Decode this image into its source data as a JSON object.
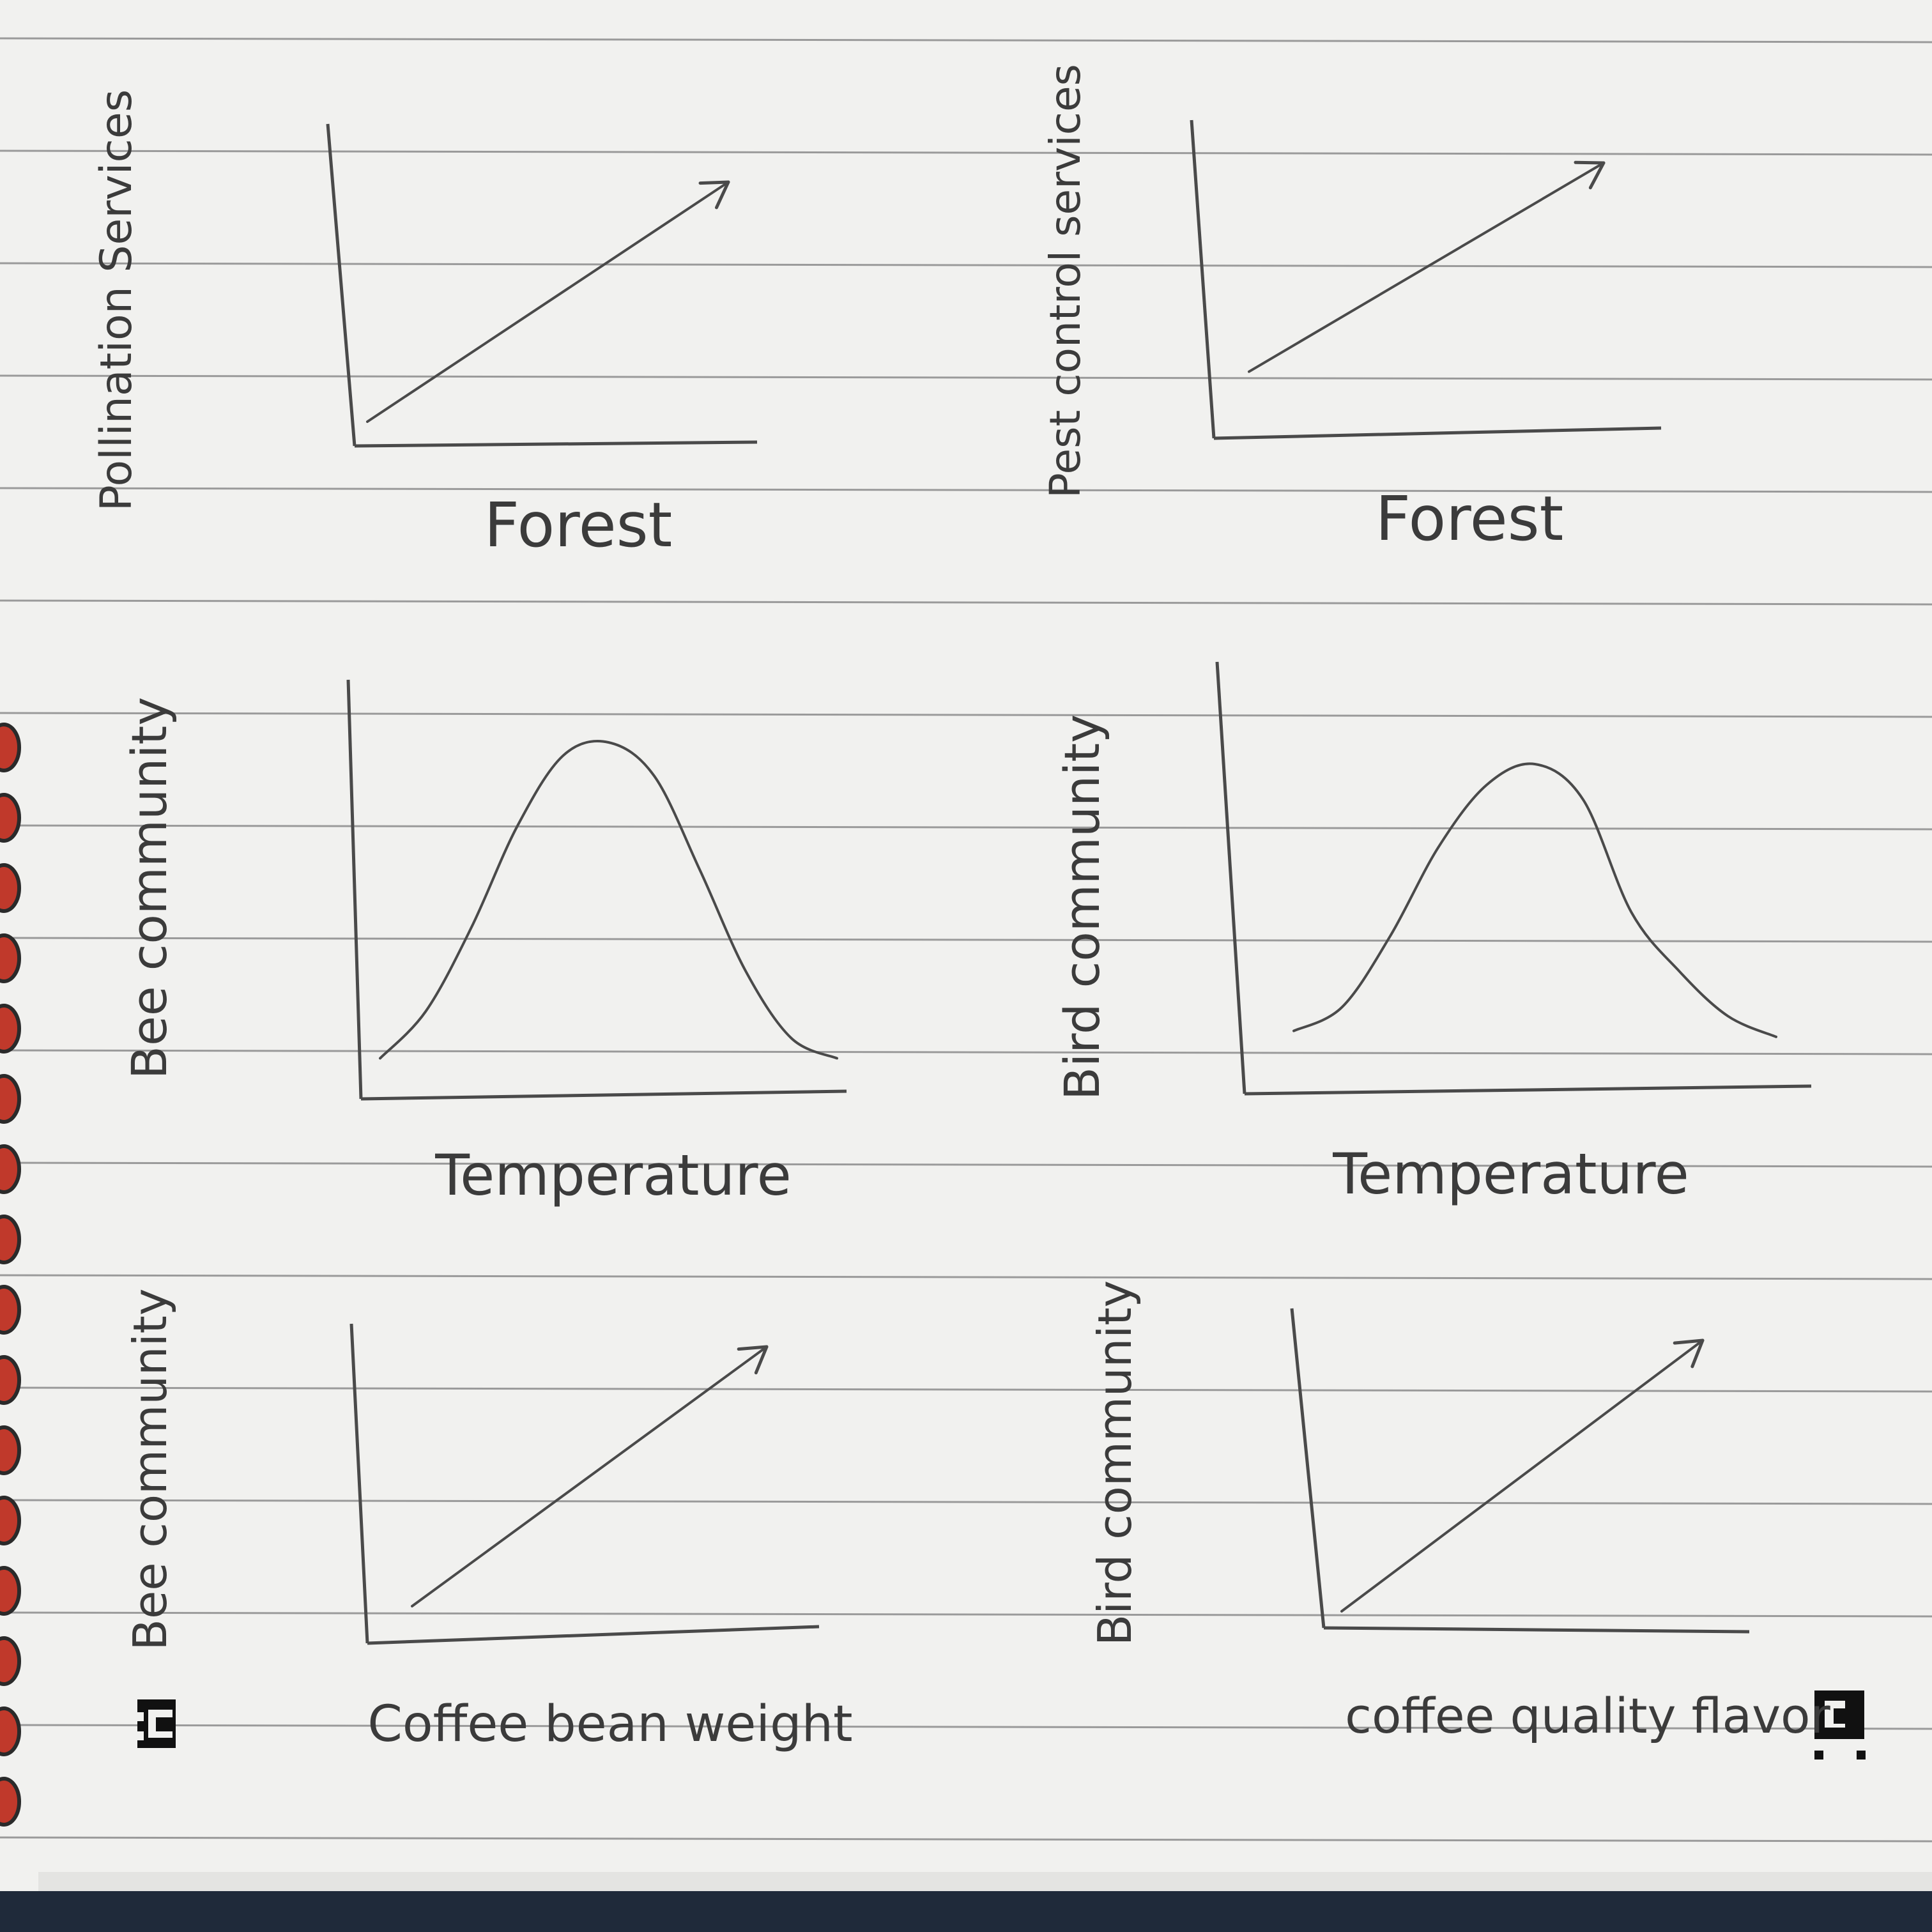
{
  "colors": {
    "paper": "#f1f1ef",
    "rule_line": "#9a9a9a",
    "pencil": "#4a4a4a",
    "spiral": "#c0392b",
    "cover": "#1f2a3a",
    "marker": "#111111"
  },
  "chart_data": [
    {
      "type": "line",
      "ylabel": "Pollination Services",
      "xlabel": "Forest",
      "x": [
        0,
        1
      ],
      "y": [
        0,
        1
      ],
      "end_marker": "arrow"
    },
    {
      "type": "line",
      "ylabel": "Pest control services",
      "xlabel": "Forest",
      "x": [
        0,
        1
      ],
      "y": [
        0.1,
        1
      ],
      "end_marker": "arrow"
    },
    {
      "type": "line",
      "ylabel": "Bee community",
      "xlabel": "Temperature",
      "x": [
        0,
        0.1,
        0.2,
        0.3,
        0.4,
        0.5,
        0.6,
        0.7,
        0.8,
        0.9,
        1.0
      ],
      "y": [
        0.06,
        0.2,
        0.45,
        0.75,
        0.96,
        1.0,
        0.9,
        0.62,
        0.32,
        0.12,
        0.06
      ],
      "end_marker": "none"
    },
    {
      "type": "line",
      "ylabel": "Bird community",
      "xlabel": "Temperature",
      "x": [
        0,
        0.1,
        0.2,
        0.3,
        0.4,
        0.5,
        0.6,
        0.7,
        0.8,
        0.9,
        1.0
      ],
      "y": [
        0.1,
        0.18,
        0.42,
        0.72,
        0.93,
        1.0,
        0.88,
        0.5,
        0.3,
        0.15,
        0.08
      ],
      "end_marker": "none"
    },
    {
      "type": "line",
      "ylabel": "Bee community",
      "xlabel": "Coffee bean weight",
      "x": [
        0,
        1
      ],
      "y": [
        0,
        1
      ],
      "end_marker": "arrow"
    },
    {
      "type": "line",
      "ylabel": "Bird community",
      "xlabel": "coffee quality flavor",
      "x": [
        0,
        1
      ],
      "y": [
        0,
        1
      ],
      "end_marker": "arrow"
    }
  ]
}
